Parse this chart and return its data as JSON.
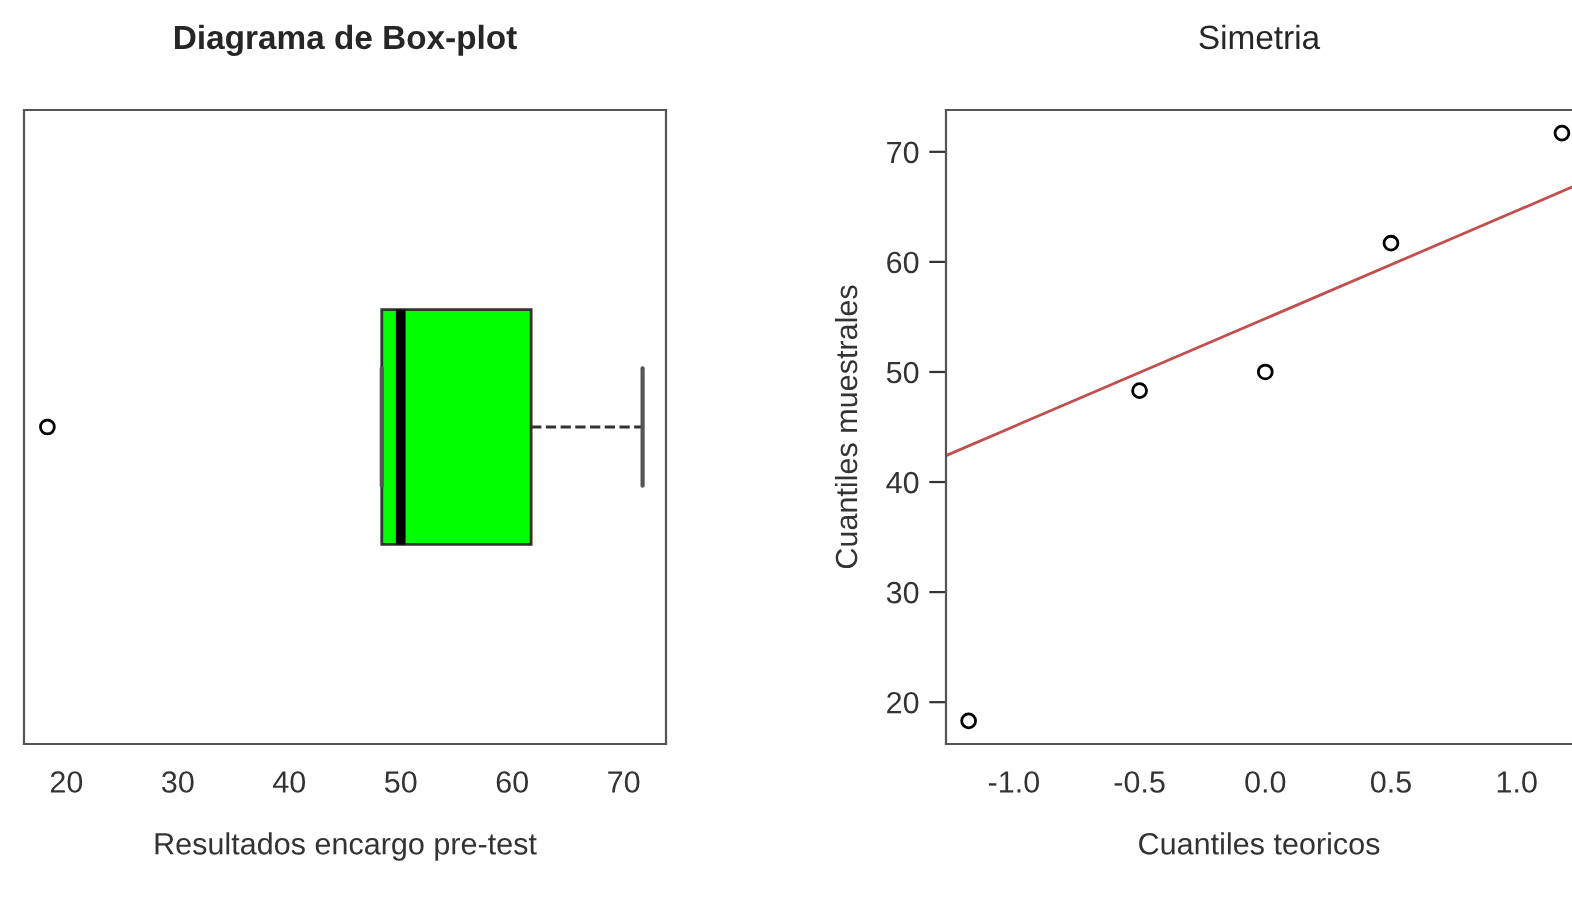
{
  "chart_data": [
    {
      "type": "box",
      "title": "Diagrama de Box-plot",
      "xlabel": "Resultados encargo pre-test",
      "orientation": "horizontal",
      "categories": [
        null
      ],
      "color": "#00ff00",
      "boxes": [
        {
          "low": 48.3,
          "q1": 48.3,
          "median": 50,
          "q3": 61.7,
          "high": 71.7,
          "outliers": [
            18.3
          ]
        }
      ],
      "xlim": [
        16.2,
        73.8
      ],
      "xticks": [
        20,
        30,
        40,
        50,
        60,
        70
      ],
      "tick_labels": "x"
    },
    {
      "type": "scatter",
      "title": "Simetria",
      "xlabel": "Cuantiles teoricos",
      "ylabel": "Cuantiles muestrales",
      "series": [
        {
          "type": "scatter",
          "color": "#000000",
          "marker": "circle",
          "x": [
            -1.18,
            -0.5,
            0,
            0.5,
            1.18
          ],
          "values": [
            18.3,
            48.3,
            50,
            61.7,
            71.7
          ]
        },
        {
          "type": "line",
          "color": "#c0504d",
          "line_style": "solid",
          "x": [
            -1.27,
            1.22
          ],
          "values": [
            42.4,
            66.8
          ]
        }
      ],
      "xlim": [
        -1.27,
        1.22
      ],
      "ylim": [
        16.2,
        73.8
      ],
      "xticks": [
        {
          "value": -1,
          "label": "-1.0"
        },
        -0.5,
        {
          "value": 0,
          "label": "0.0"
        },
        0.5,
        {
          "value": 1,
          "label": "1.0"
        }
      ],
      "yticks": [
        20,
        30,
        40,
        50,
        60,
        70
      ]
    }
  ]
}
